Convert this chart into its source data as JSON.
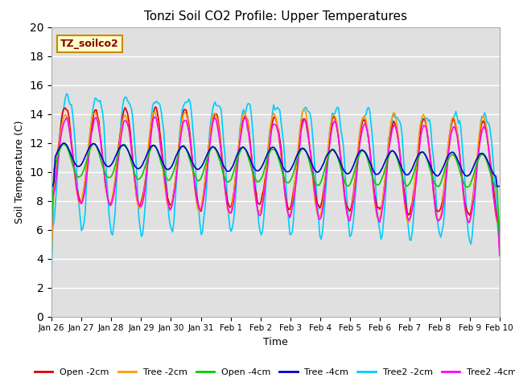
{
  "title": "Tonzi Soil CO2 Profile: Upper Temperatures",
  "xlabel": "Time",
  "ylabel": "Soil Temperature (C)",
  "ylim": [
    0,
    20
  ],
  "yticks": [
    0,
    2,
    4,
    6,
    8,
    10,
    12,
    14,
    16,
    18,
    20
  ],
  "bg_color": "#e0e0e0",
  "annotation_text": "TZ_soilco2",
  "annotation_color": "#880000",
  "annotation_bg": "#ffffcc",
  "annotation_edge": "#cc8800",
  "series_names": [
    "Open -2cm",
    "Tree -2cm",
    "Open -4cm",
    "Tree -4cm",
    "Tree2 -2cm",
    "Tree2 -4cm"
  ],
  "series_colors": [
    "#dd0000",
    "#ff9900",
    "#00cc00",
    "#0000cc",
    "#00ccff",
    "#ff00ff"
  ],
  "xtick_labels": [
    "Jan 26",
    "Jan 27",
    "Jan 28",
    "Jan 29",
    "Jan 30",
    "Jan 31",
    "Feb 1",
    "Feb 2",
    "Feb 3",
    "Feb 4",
    "Feb 5",
    "Feb 6",
    "Feb 7",
    "Feb 8",
    "Feb 9",
    "Feb 10"
  ],
  "n_days": 15,
  "pts_per_day": 24
}
